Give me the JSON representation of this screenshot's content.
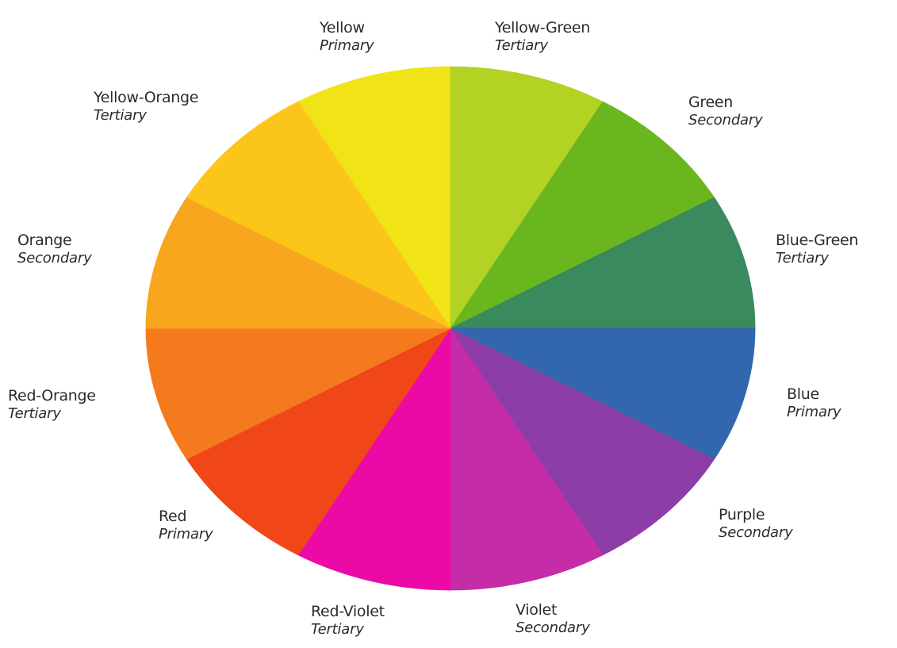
{
  "wheel": {
    "segments": [
      {
        "name": "Yellow",
        "type": "Primary",
        "color": "#f1e416"
      },
      {
        "name": "Yellow-Green",
        "type": "Tertiary",
        "color": "#b2d224"
      },
      {
        "name": "Green",
        "type": "Secondary",
        "color": "#6ab61f"
      },
      {
        "name": "Blue-Green",
        "type": "Tertiary",
        "color": "#3a8a5e"
      },
      {
        "name": "Blue",
        "type": "Primary",
        "color": "#3267ad"
      },
      {
        "name": "Purple",
        "type": "Secondary",
        "color": "#8c3da8"
      },
      {
        "name": "Violet",
        "type": "Secondary",
        "color": "#c42ca8"
      },
      {
        "name": "Red-Violet",
        "type": "Tertiary",
        "color": "#ec0aa6"
      },
      {
        "name": "Red",
        "type": "Primary",
        "color": "#f04618"
      },
      {
        "name": "Red-Orange",
        "type": "Tertiary",
        "color": "#f57a1e"
      },
      {
        "name": "Orange",
        "type": "Secondary",
        "color": "#f7a61e"
      },
      {
        "name": "Yellow-Orange",
        "type": "Tertiary",
        "color": "#fbc51a"
      }
    ]
  }
}
